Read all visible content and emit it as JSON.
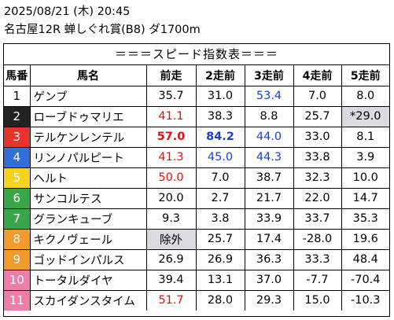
{
  "header": {
    "datetime": "2025/08/21 (木) 20:45",
    "race": "名古屋12R 蝉しぐれ賞(B8) ダ1700m"
  },
  "banner": "＝＝＝スピード指数表＝＝＝",
  "columns": [
    "馬番",
    "馬名",
    "前走",
    "2走前",
    "3走前",
    "4走前",
    "5走前"
  ],
  "rows": [
    {
      "num": "1",
      "name": "ゲンブ",
      "num_bg": "#ffffff",
      "num_fg": "#000000",
      "vals": [
        "35.7",
        "31.0",
        "53.4",
        "7.0",
        "8.0"
      ],
      "styles": [
        "",
        "",
        "blue",
        "",
        ""
      ]
    },
    {
      "num": "2",
      "name": "ローブドゥマリエ",
      "num_bg": "#222222",
      "num_fg": "#ffffff",
      "vals": [
        "41.1",
        "38.3",
        "8.8",
        "25.7",
        "*29.0"
      ],
      "styles": [
        "red",
        "",
        "",
        "",
        "gray"
      ]
    },
    {
      "num": "3",
      "name": "テルケンレンテル",
      "num_bg": "#e8332a",
      "num_fg": "#ffffff",
      "vals": [
        "57.0",
        "84.2",
        "44.0",
        "33.0",
        "8.1"
      ],
      "styles": [
        "red bold",
        "blue bold",
        "blue",
        "",
        ""
      ]
    },
    {
      "num": "4",
      "name": "リンノパルピート",
      "num_bg": "#2f6fd6",
      "num_fg": "#ffffff",
      "vals": [
        "41.3",
        "45.0",
        "44.3",
        "33.8",
        "3.9"
      ],
      "styles": [
        "red",
        "blue",
        "blue",
        "",
        ""
      ]
    },
    {
      "num": "5",
      "name": "ヘルト",
      "num_bg": "#f7d21f",
      "num_fg": "#ffffff",
      "vals": [
        "50.0",
        "7.0",
        "38.7",
        "32.3",
        "10.0"
      ],
      "styles": [
        "red",
        "",
        "",
        "",
        ""
      ]
    },
    {
      "num": "6",
      "name": "サンコルテス",
      "num_bg": "#3aa64a",
      "num_fg": "#ffffff",
      "vals": [
        "20.0",
        "2.7",
        "21.7",
        "22.0",
        "14.7"
      ],
      "styles": [
        "",
        "",
        "",
        "",
        ""
      ]
    },
    {
      "num": "7",
      "name": "グランキューブ",
      "num_bg": "#3aa64a",
      "num_fg": "#ffffff",
      "vals": [
        "9.3",
        "3.8",
        "33.9",
        "33.7",
        "35.3"
      ],
      "styles": [
        "",
        "",
        "",
        "",
        ""
      ]
    },
    {
      "num": "8",
      "name": "キクノヴェール",
      "num_bg": "#f39a2c",
      "num_fg": "#ffffff",
      "vals": [
        "除外",
        "25.7",
        "17.4",
        "-28.0",
        "19.6"
      ],
      "styles": [
        "gray",
        "",
        "",
        "",
        ""
      ]
    },
    {
      "num": "9",
      "name": "ゴッドインパルス",
      "num_bg": "#f39a2c",
      "num_fg": "#ffffff",
      "vals": [
        "26.9",
        "26.9",
        "36.3",
        "33.3",
        "48.4"
      ],
      "styles": [
        "",
        "",
        "",
        "",
        ""
      ]
    },
    {
      "num": "10",
      "name": "トータルダイヤ",
      "num_bg": "#f07ca8",
      "num_fg": "#ffffff",
      "vals": [
        "39.4",
        "13.1",
        "37.0",
        "-7.7",
        "-70.4"
      ],
      "styles": [
        "",
        "",
        "",
        "",
        ""
      ]
    },
    {
      "num": "11",
      "name": "スカイダンスタイム",
      "num_bg": "#f07ca8",
      "num_fg": "#ffffff",
      "vals": [
        "51.7",
        "28.0",
        "29.3",
        "15.0",
        "-10.3"
      ],
      "styles": [
        "red",
        "",
        "",
        "",
        ""
      ]
    }
  ]
}
